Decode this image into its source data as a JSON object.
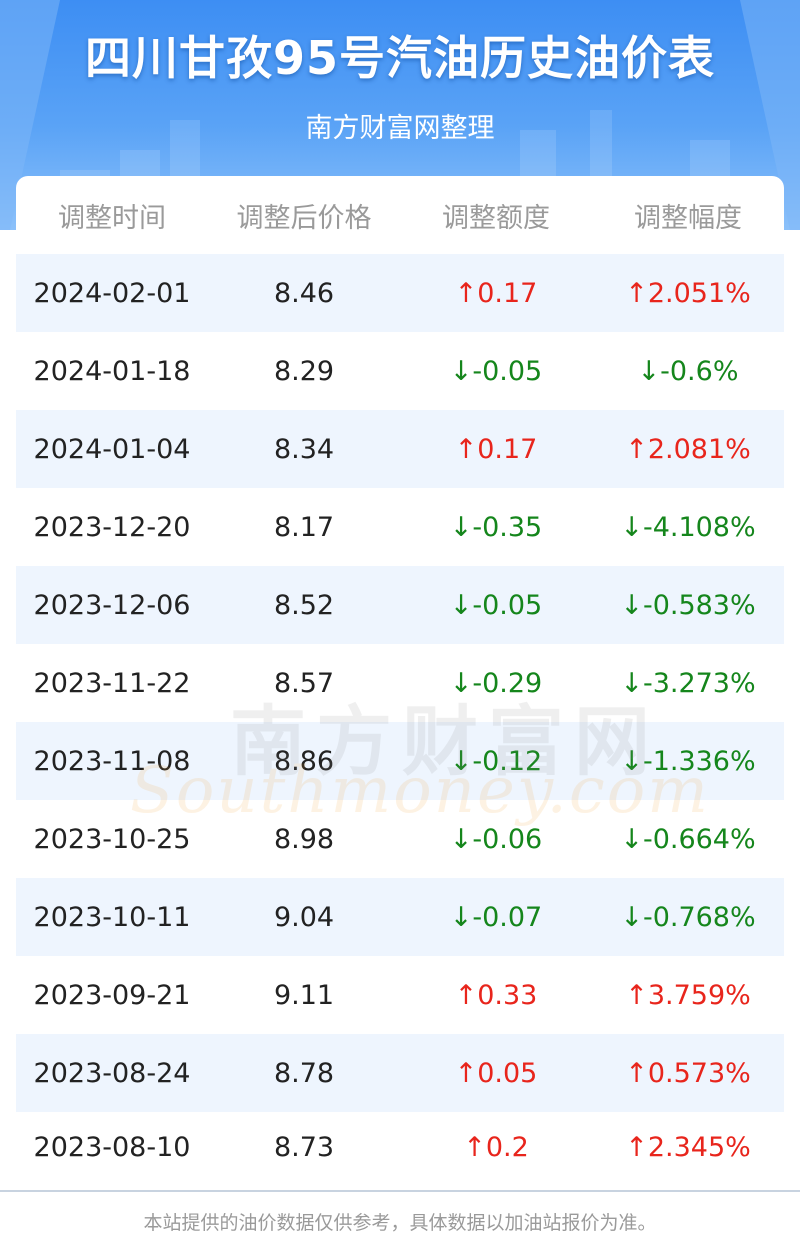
{
  "header": {
    "title": "四川甘孜95号汽油历史油价表",
    "subtitle": "南方财富网整理"
  },
  "table": {
    "columns": [
      "调整时间",
      "调整后价格",
      "调整额度",
      "调整幅度"
    ],
    "rows": [
      {
        "date": "2024-02-01",
        "price": "8.46",
        "amount": "↑0.17",
        "percent": "↑2.051%",
        "direction": "up"
      },
      {
        "date": "2024-01-18",
        "price": "8.29",
        "amount": "↓-0.05",
        "percent": "↓-0.6%",
        "direction": "down"
      },
      {
        "date": "2024-01-04",
        "price": "8.34",
        "amount": "↑0.17",
        "percent": "↑2.081%",
        "direction": "up"
      },
      {
        "date": "2023-12-20",
        "price": "8.17",
        "amount": "↓-0.35",
        "percent": "↓-4.108%",
        "direction": "down"
      },
      {
        "date": "2023-12-06",
        "price": "8.52",
        "amount": "↓-0.05",
        "percent": "↓-0.583%",
        "direction": "down"
      },
      {
        "date": "2023-11-22",
        "price": "8.57",
        "amount": "↓-0.29",
        "percent": "↓-3.273%",
        "direction": "down"
      },
      {
        "date": "2023-11-08",
        "price": "8.86",
        "amount": "↓-0.12",
        "percent": "↓-1.336%",
        "direction": "down"
      },
      {
        "date": "2023-10-25",
        "price": "8.98",
        "amount": "↓-0.06",
        "percent": "↓-0.664%",
        "direction": "down"
      },
      {
        "date": "2023-10-11",
        "price": "9.04",
        "amount": "↓-0.07",
        "percent": "↓-0.768%",
        "direction": "down"
      },
      {
        "date": "2023-09-21",
        "price": "9.11",
        "amount": "↑0.33",
        "percent": "↑3.759%",
        "direction": "up"
      },
      {
        "date": "2023-08-24",
        "price": "8.78",
        "amount": "↑0.05",
        "percent": "↑0.573%",
        "direction": "up"
      },
      {
        "date": "2023-08-10",
        "price": "8.73",
        "amount": "↑0.2",
        "percent": "↑2.345%",
        "direction": "up"
      }
    ]
  },
  "watermark": {
    "cn": "南方财富网",
    "en": "Southmoney.com"
  },
  "footer": {
    "note": "本站提供的油价数据仅供参考，具体数据以加油站报价为准。"
  },
  "colors": {
    "up": "#e8251c",
    "down": "#15861c",
    "header_blue": "#3d8ef3",
    "row_alt": "#eef5fe"
  }
}
